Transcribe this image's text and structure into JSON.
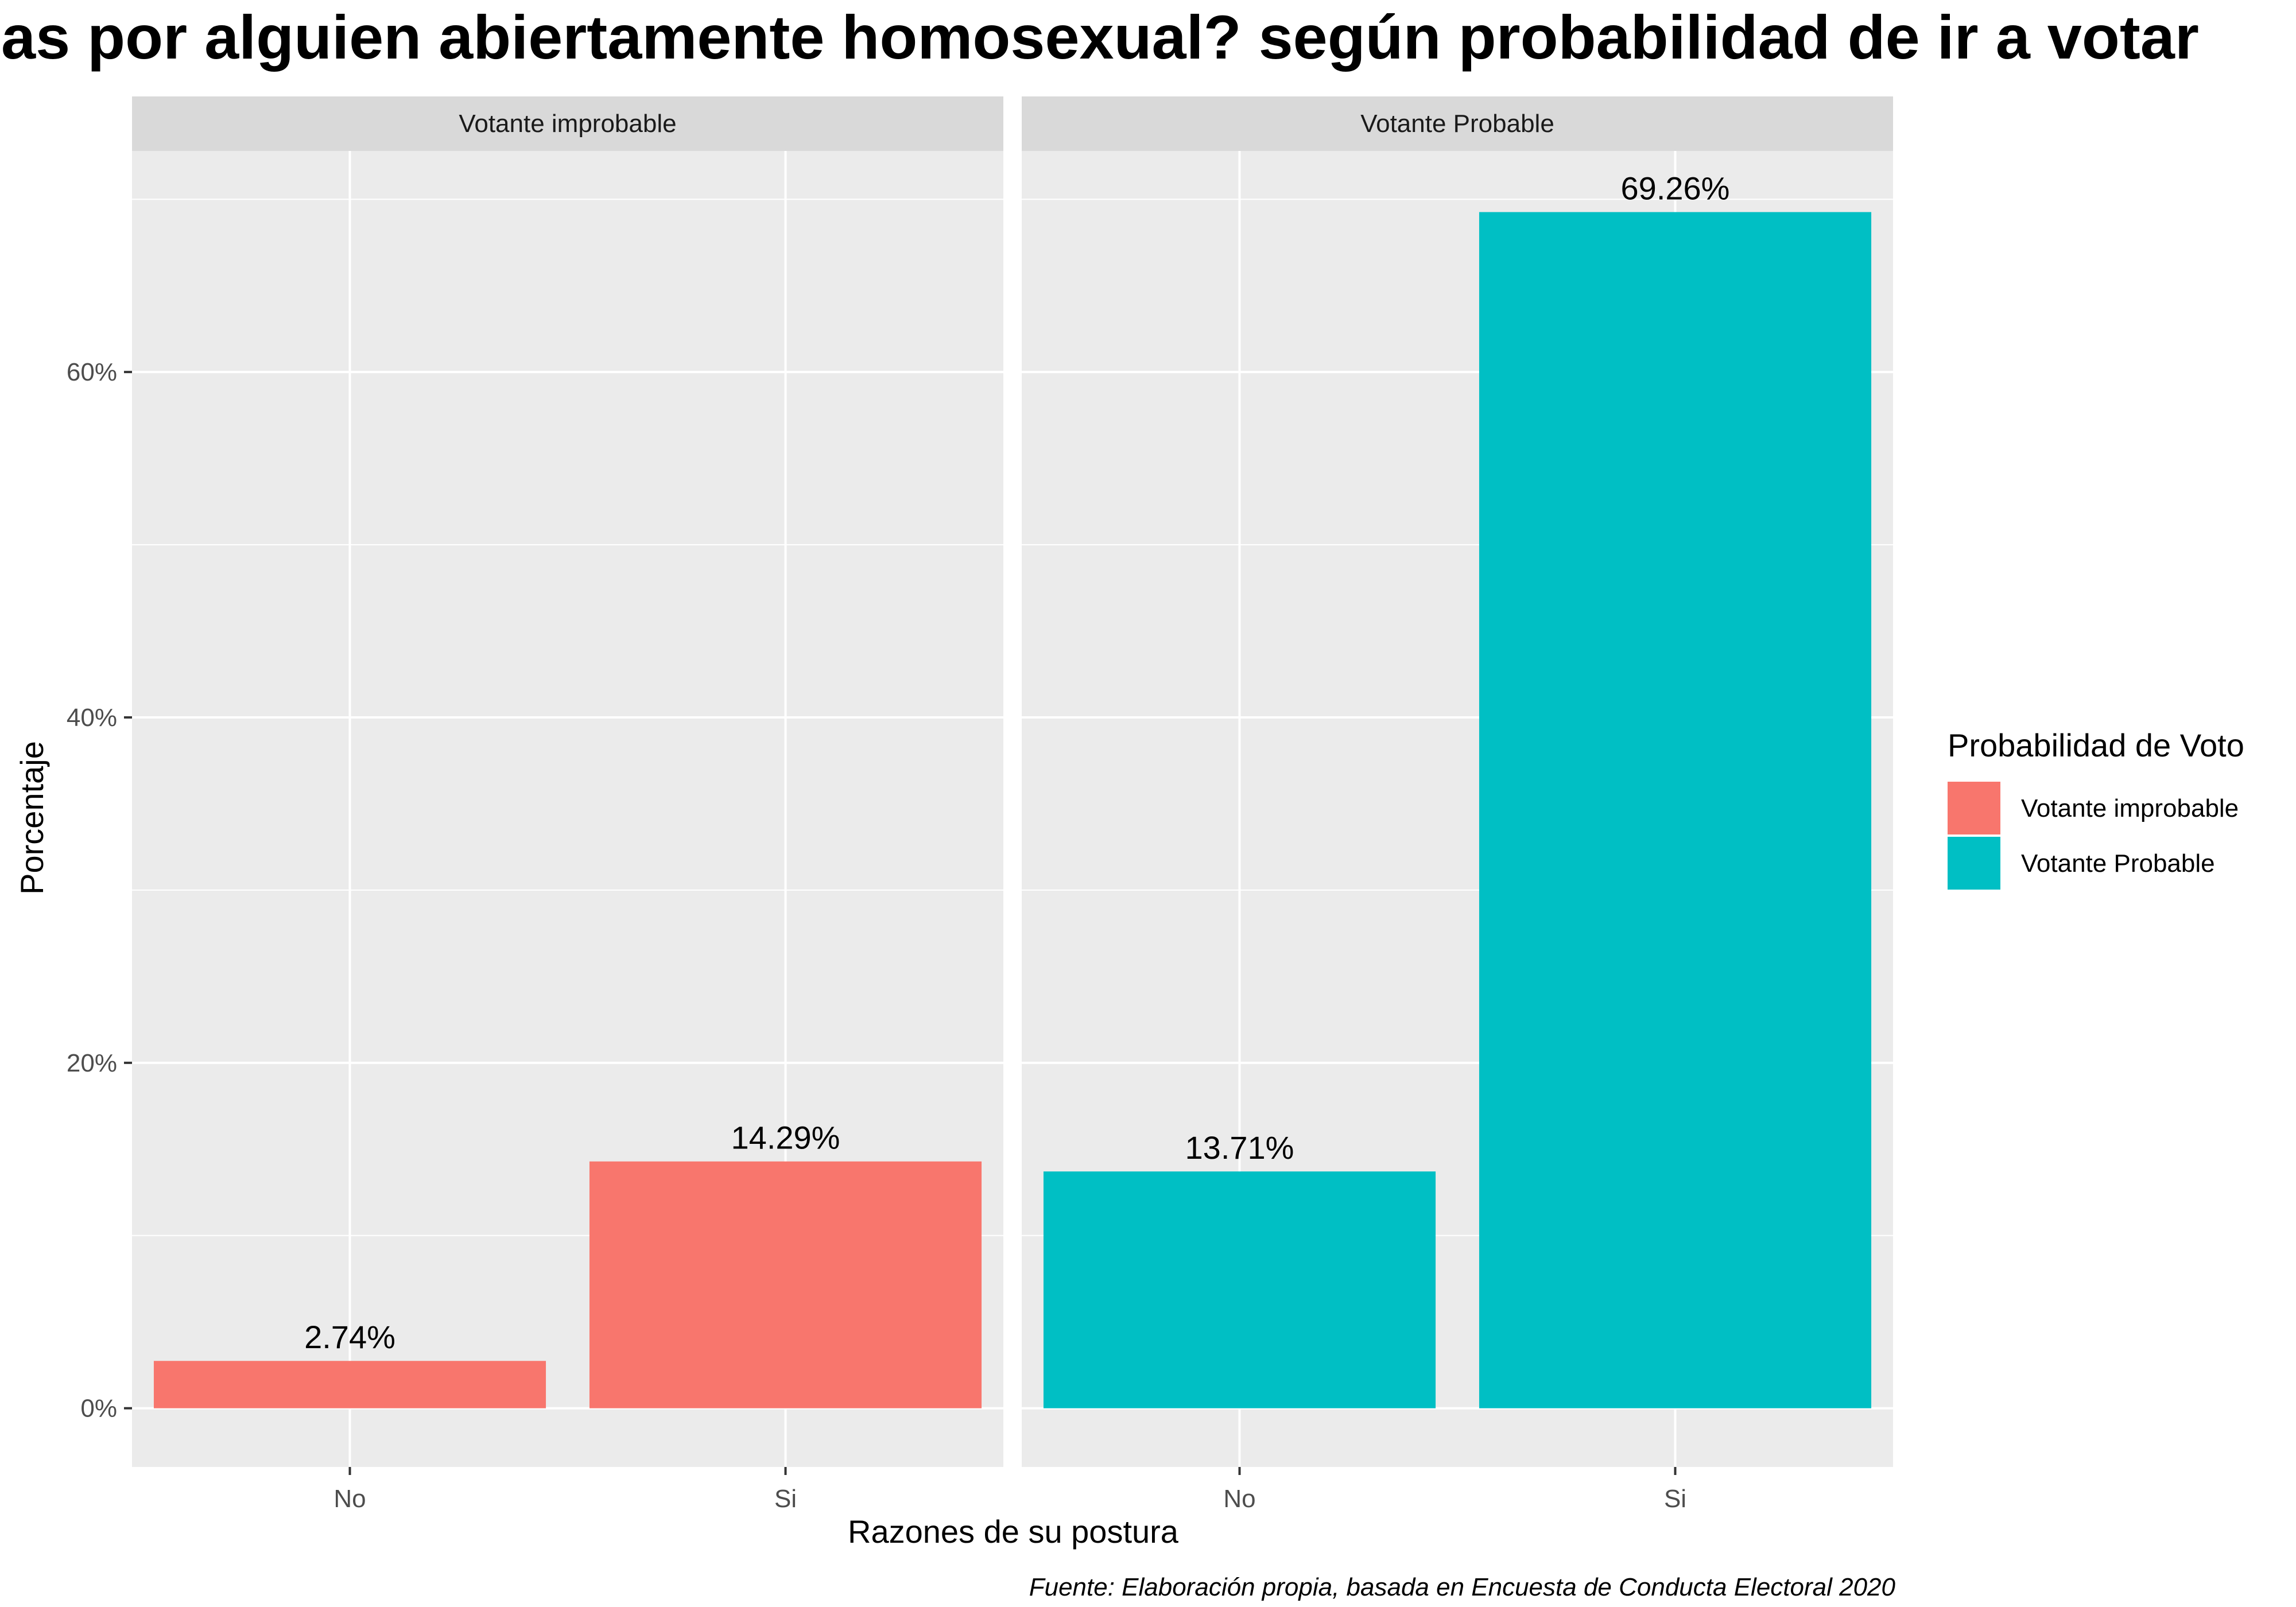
{
  "chart_data": {
    "type": "bar",
    "title": "as por alguien abiertamente homosexual? según probabilidad de ir a votar",
    "xlabel": "Razones de su postura",
    "ylabel": "Porcentaje",
    "caption": "Fuente: Elaboración propia, basada en Encuesta de Conducta Electoral 2020",
    "categories": [
      "No",
      "Si"
    ],
    "ylim": [
      -3.4,
      72.8
    ],
    "yticks": [
      0,
      20,
      40,
      60
    ],
    "ytick_labels": [
      "0%",
      "20%",
      "40%",
      "60%"
    ],
    "grid": true,
    "legend": {
      "title": "Probabilidad de Voto",
      "position": "right",
      "entries": [
        "Votante improbable",
        "Votante Probable"
      ]
    },
    "panels": [
      {
        "title": "Votante improbable",
        "color": "#F8766D",
        "values": [
          2.74,
          14.29
        ],
        "labels": [
          "2.74%",
          "14.29%"
        ]
      },
      {
        "title": "Votante Probable",
        "color": "#00BFC4",
        "values": [
          13.71,
          69.26
        ],
        "labels": [
          "13.71%",
          "69.26%"
        ]
      }
    ]
  }
}
